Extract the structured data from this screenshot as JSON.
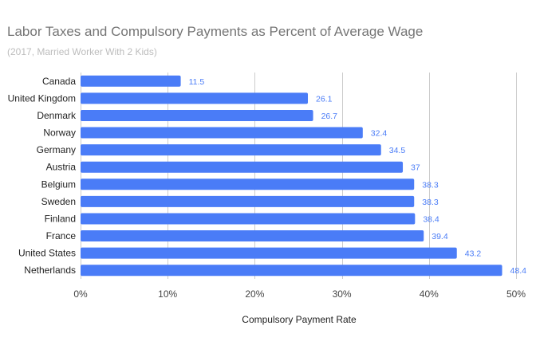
{
  "chart_data": {
    "type": "bar",
    "orientation": "horizontal",
    "title": "Labor Taxes and Compulsory Payments as Percent of Average Wage",
    "subtitle": "(2017, Married Worker With 2 Kids)",
    "xlabel": "Compulsory Payment Rate",
    "ylabel": "",
    "categories": [
      "Canada",
      "United Kingdom",
      "Denmark",
      "Norway",
      "Germany",
      "Austria",
      "Belgium",
      "Sweden",
      "Finland",
      "France",
      "United States",
      "Netherlands"
    ],
    "values": [
      11.5,
      26.1,
      26.7,
      32.4,
      34.5,
      37,
      38.3,
      38.3,
      38.4,
      39.4,
      43.2,
      48.4
    ],
    "value_labels": [
      "11.5",
      "26.1",
      "26.7",
      "32.4",
      "34.5",
      "37",
      "38.3",
      "38.3",
      "38.4",
      "39.4",
      "43.2",
      "48.4"
    ],
    "xlim": [
      0,
      50
    ],
    "x_ticks": [
      0,
      10,
      20,
      30,
      40,
      50
    ],
    "x_tick_labels": [
      "0%",
      "10%",
      "20%",
      "30%",
      "40%",
      "50%"
    ],
    "grid": true,
    "legend": "none",
    "colors": {
      "bar": "#4a7cf7",
      "data_label": "#4a7cf7",
      "grid": "#cccccc",
      "title": "#757575",
      "subtitle": "#bdbdbd"
    }
  }
}
